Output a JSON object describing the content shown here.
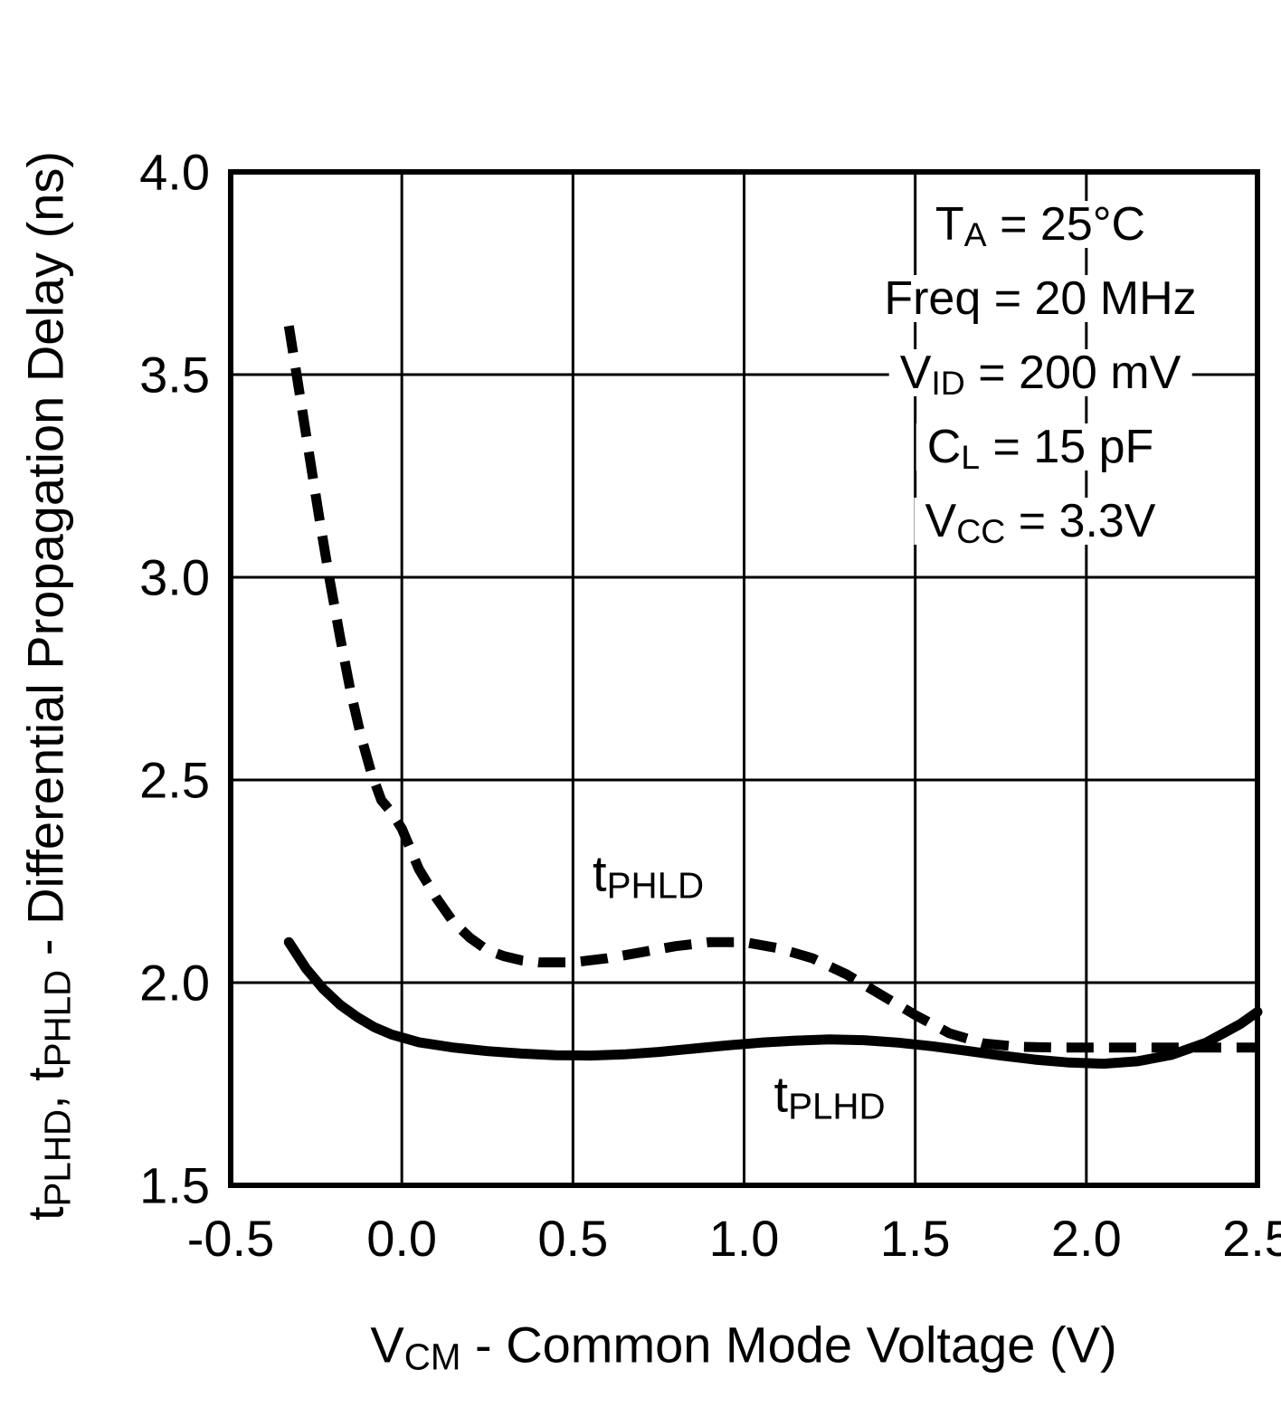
{
  "chart_data": {
    "type": "line",
    "title": "",
    "xlabel_parts": [
      {
        "t": "V"
      },
      {
        "s": "CM"
      },
      {
        "t": " - Common Mode Voltage (V)"
      }
    ],
    "ylabel_parts": [
      {
        "t": "t"
      },
      {
        "s": "PLHD"
      },
      {
        "t": ", t"
      },
      {
        "s": "PHLD"
      },
      {
        "t": " - Differential Propagation Delay (ns)"
      }
    ],
    "xlabel_text": "VCM - Common Mode Voltage (V)",
    "ylabel_text": "tPLHD, tPHLD - Differential Propagation Delay (ns)",
    "xlim": [
      -0.5,
      2.5
    ],
    "ylim": [
      1.5,
      4.0
    ],
    "xtick_values": [
      -0.5,
      0.0,
      0.5,
      1.0,
      1.5,
      2.0,
      2.5
    ],
    "xtick_labels": [
      "-0.5",
      "0.0",
      "0.5",
      "1.0",
      "1.5",
      "2.0",
      "2.5"
    ],
    "ytick_values": [
      1.5,
      2.0,
      2.5,
      3.0,
      3.5,
      4.0
    ],
    "ytick_labels": [
      "1.5",
      "2.0",
      "2.5",
      "3.0",
      "3.5",
      "4.0"
    ],
    "grid": true,
    "line_color": "#000000",
    "background_color": "#ffffff",
    "annotations": [
      {
        "text": "TA = 25°C",
        "parts": [
          {
            "t": "T"
          },
          {
            "s": "A"
          },
          {
            "t": " = 25°C"
          }
        ]
      },
      {
        "text": "Freq = 20 MHz",
        "parts": [
          {
            "t": "Freq = 20 MHz"
          }
        ]
      },
      {
        "text": "VID = 200 mV",
        "parts": [
          {
            "t": "V"
          },
          {
            "s": "ID"
          },
          {
            "t": " = 200 mV"
          }
        ]
      },
      {
        "text": "CL = 15 pF",
        "parts": [
          {
            "t": "C"
          },
          {
            "s": "L"
          },
          {
            "t": " = 15 pF"
          }
        ]
      },
      {
        "text": "VCC = 3.3V",
        "parts": [
          {
            "t": "V"
          },
          {
            "s": "CC"
          },
          {
            "t": " = 3.3V"
          }
        ]
      }
    ],
    "series": [
      {
        "name": "tPHLD",
        "style": "dashed",
        "label_parts": [
          {
            "t": "t"
          },
          {
            "s": "PHLD"
          }
        ],
        "label_at": {
          "x": 0.72,
          "y": 2.27
        },
        "points": [
          [
            -0.33,
            3.62
          ],
          [
            -0.3,
            3.46
          ],
          [
            -0.27,
            3.3
          ],
          [
            -0.24,
            3.14
          ],
          [
            -0.21,
            2.99
          ],
          [
            -0.18,
            2.85
          ],
          [
            -0.15,
            2.72
          ],
          [
            -0.12,
            2.61
          ],
          [
            -0.09,
            2.52
          ],
          [
            -0.06,
            2.45
          ],
          [
            -0.03,
            2.42
          ],
          [
            0.0,
            2.38
          ],
          [
            0.05,
            2.28
          ],
          [
            0.1,
            2.21
          ],
          [
            0.15,
            2.15
          ],
          [
            0.2,
            2.11
          ],
          [
            0.25,
            2.08
          ],
          [
            0.3,
            2.065
          ],
          [
            0.35,
            2.055
          ],
          [
            0.4,
            2.05
          ],
          [
            0.5,
            2.05
          ],
          [
            0.6,
            2.06
          ],
          [
            0.7,
            2.075
          ],
          [
            0.8,
            2.09
          ],
          [
            0.9,
            2.1
          ],
          [
            1.0,
            2.1
          ],
          [
            1.1,
            2.085
          ],
          [
            1.2,
            2.06
          ],
          [
            1.3,
            2.02
          ],
          [
            1.4,
            1.97
          ],
          [
            1.5,
            1.92
          ],
          [
            1.6,
            1.875
          ],
          [
            1.7,
            1.85
          ],
          [
            1.8,
            1.842
          ],
          [
            1.9,
            1.84
          ],
          [
            2.0,
            1.84
          ],
          [
            2.1,
            1.84
          ],
          [
            2.2,
            1.84
          ],
          [
            2.3,
            1.84
          ],
          [
            2.4,
            1.84
          ],
          [
            2.5,
            1.84
          ]
        ]
      },
      {
        "name": "tPLHD",
        "style": "solid",
        "label_parts": [
          {
            "t": "t"
          },
          {
            "s": "PLHD"
          }
        ],
        "label_at": {
          "x": 1.25,
          "y": 1.725
        },
        "points": [
          [
            -0.33,
            2.1
          ],
          [
            -0.28,
            2.035
          ],
          [
            -0.23,
            1.985
          ],
          [
            -0.18,
            1.945
          ],
          [
            -0.13,
            1.915
          ],
          [
            -0.08,
            1.89
          ],
          [
            -0.03,
            1.872
          ],
          [
            0.05,
            1.853
          ],
          [
            0.15,
            1.84
          ],
          [
            0.25,
            1.831
          ],
          [
            0.35,
            1.825
          ],
          [
            0.45,
            1.821
          ],
          [
            0.55,
            1.82
          ],
          [
            0.65,
            1.823
          ],
          [
            0.75,
            1.829
          ],
          [
            0.85,
            1.837
          ],
          [
            0.95,
            1.845
          ],
          [
            1.05,
            1.852
          ],
          [
            1.15,
            1.857
          ],
          [
            1.25,
            1.86
          ],
          [
            1.35,
            1.858
          ],
          [
            1.45,
            1.852
          ],
          [
            1.55,
            1.843
          ],
          [
            1.65,
            1.832
          ],
          [
            1.75,
            1.82
          ],
          [
            1.85,
            1.81
          ],
          [
            1.95,
            1.803
          ],
          [
            2.05,
            1.8
          ],
          [
            2.15,
            1.806
          ],
          [
            2.25,
            1.822
          ],
          [
            2.35,
            1.852
          ],
          [
            2.45,
            1.898
          ],
          [
            2.5,
            1.928
          ]
        ]
      }
    ]
  }
}
